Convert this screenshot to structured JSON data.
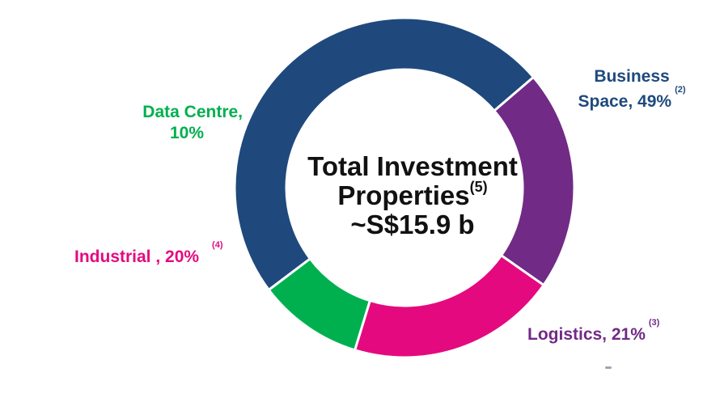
{
  "chart_data": {
    "type": "pie",
    "donut": true,
    "categories": [
      "Business Space",
      "Logistics",
      "Industrial",
      "Data Centre"
    ],
    "values": [
      49,
      21,
      20,
      10
    ],
    "colors": [
      "#1f497d",
      "#712a86",
      "#e5097f",
      "#00b04f"
    ],
    "center_label": {
      "line1": "Total Investment",
      "line2": "Properties",
      "line2_note": "(5)",
      "line3": "~S$15.9 b"
    },
    "labels": [
      {
        "text_line1": "Business",
        "text_line2": "Space, 49%",
        "note": "(2)"
      },
      {
        "text_line1": "Logistics, 21%",
        "note": "(3)"
      },
      {
        "text_line1": "Industrial , 20%",
        "note": "(4)"
      },
      {
        "text_line1": "Data Centre,",
        "text_line2": "10%"
      }
    ]
  }
}
